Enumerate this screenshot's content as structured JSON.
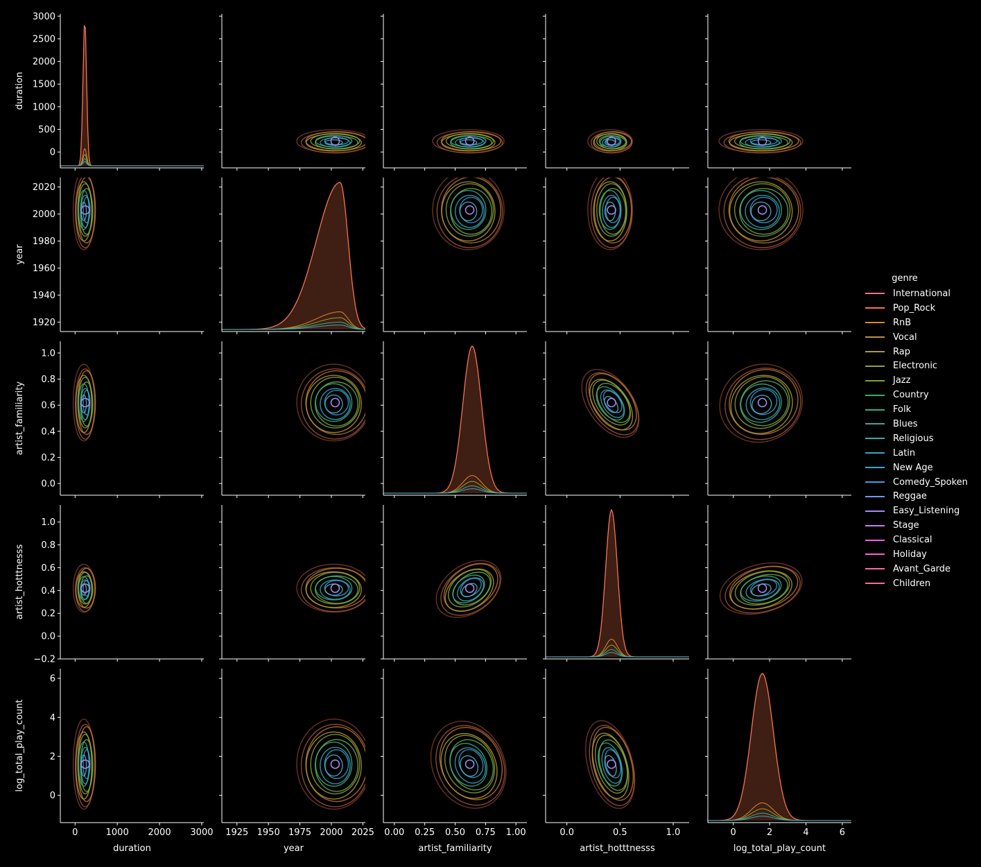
{
  "chart_data": {
    "type": "pairplot",
    "kinds": {
      "diagonal": "kde",
      "off_diagonal": "kde contour"
    },
    "variables": [
      "duration",
      "year",
      "artist_familiarity",
      "artist_hotttnesss",
      "log_total_play_count"
    ],
    "axes": {
      "duration": {
        "range": [
          -350,
          3050
        ],
        "ticks": [
          0,
          500,
          1000,
          1500,
          2000,
          2500,
          3000
        ],
        "x_ticks": [
          0,
          1000,
          2000,
          3000
        ],
        "y_ticks": [
          0,
          500,
          1000,
          1500,
          2000,
          2500,
          3000
        ]
      },
      "year": {
        "range": [
          1913,
          2027
        ],
        "x_ticks": [
          1925,
          1950,
          1975,
          2000,
          2025
        ],
        "y_ticks": [
          1920,
          1940,
          1960,
          1980,
          2000,
          2020
        ]
      },
      "artist_familiarity": {
        "range": [
          -0.09,
          1.09
        ],
        "x_ticks": [
          "0.00",
          "0.25",
          "0.50",
          "0.75",
          "1.00"
        ],
        "y_ticks": [
          "0.0",
          "0.2",
          "0.4",
          "0.6",
          "0.8",
          "1.0"
        ]
      },
      "artist_hotttnesss": {
        "range": [
          -0.2,
          1.15
        ],
        "x_ticks": [
          "0.0",
          "0.5",
          "1.0"
        ],
        "y_ticks": [
          "−0.2",
          "0.0",
          "0.2",
          "0.4",
          "0.6",
          "0.8",
          "1.0"
        ]
      },
      "log_total_play_count": {
        "range": [
          -1.4,
          6.5
        ],
        "x_ticks": [
          "0",
          "2",
          "4",
          "6"
        ],
        "y_ticks": [
          "0",
          "2",
          "4",
          "6"
        ]
      }
    },
    "centers": {
      "duration": 240,
      "year": 2003,
      "artist_familiarity": 0.62,
      "artist_hotttnesss": 0.42,
      "log_total_play_count": 1.6
    },
    "spreads": {
      "duration": 120,
      "year": 14,
      "artist_familiarity": 0.14,
      "artist_hotttnesss": 0.1,
      "log_total_play_count": 1.1
    },
    "diagonal_peaks": {
      "duration": {
        "x": 230,
        "y": 2900
      },
      "year": {
        "x": 2007,
        "y": 2022
      },
      "artist_familiarity": {
        "x": 0.64,
        "y": 1.02
      },
      "artist_hotttnesss": {
        "x": 0.42,
        "y": 1.09
      },
      "log_total_play_count": {
        "x": 1.6,
        "y": 6.15
      }
    },
    "legend": {
      "title": "genre",
      "placement": "right",
      "entries": [
        {
          "name": "International",
          "color": "#f77189"
        },
        {
          "name": "Pop_Rock",
          "color": "#f7754f"
        },
        {
          "name": "RnB",
          "color": "#dd8a31"
        },
        {
          "name": "Vocal",
          "color": "#c39532"
        },
        {
          "name": "Rap",
          "color": "#ae9d31"
        },
        {
          "name": "Electronic",
          "color": "#97a431"
        },
        {
          "name": "Jazz",
          "color": "#77ab31"
        },
        {
          "name": "Country",
          "color": "#32b166"
        },
        {
          "name": "Folk",
          "color": "#33af87"
        },
        {
          "name": "Blues",
          "color": "#34ad9c"
        },
        {
          "name": "Religious",
          "color": "#35abab"
        },
        {
          "name": "Latin",
          "color": "#36a9bd"
        },
        {
          "name": "New Age",
          "color": "#38a7d0"
        },
        {
          "name": "Comedy_Spoken",
          "color": "#3ba3ec"
        },
        {
          "name": "Reggae",
          "color": "#6e9bf4"
        },
        {
          "name": "Easy_Listening",
          "color": "#a48cf4"
        },
        {
          "name": "Stage",
          "color": "#cc7af4"
        },
        {
          "name": "Classical",
          "color": "#f45cf2"
        },
        {
          "name": "Holiday",
          "color": "#f565cc"
        },
        {
          "name": "Avant_Garde",
          "color": "#f66bad"
        },
        {
          "name": "Children",
          "color": "#f77189"
        }
      ]
    }
  }
}
